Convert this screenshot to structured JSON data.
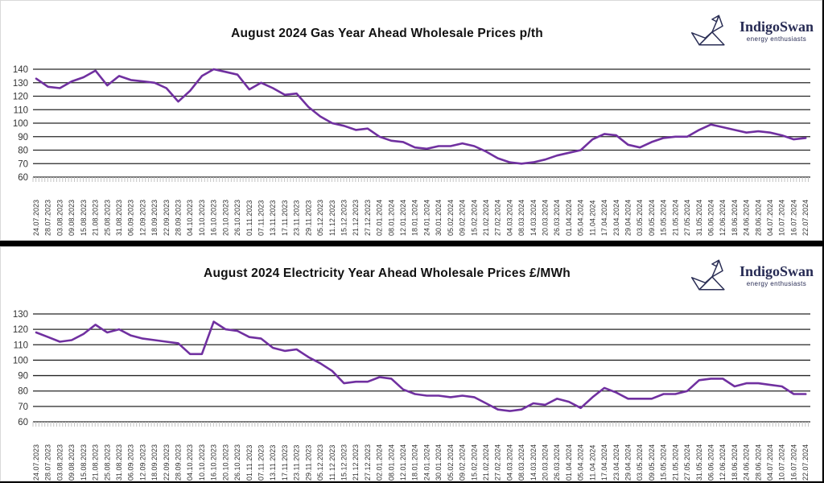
{
  "brand": {
    "name": "IndigoSwan",
    "tagline": "energy enthusiasts",
    "color": "#272b54",
    "icon": "origami-swan-icon"
  },
  "colors": {
    "line_purple": "#7030A0",
    "gridline": "#262626",
    "axis_text": "#333333",
    "panel_background": "#ffffff",
    "page_background": "#000000"
  },
  "chart_data": [
    {
      "name": "gas-year-ahead",
      "type": "line",
      "title": "August 2024 Gas Year Ahead Wholesale Prices p/th",
      "unit": "p/th",
      "series_name": "Gas year ahead wholesale price",
      "line_color": "#7030A0",
      "ylim": [
        60,
        140
      ],
      "ytick_step": 10,
      "yticks": [
        140,
        130,
        120,
        110,
        100,
        90,
        80,
        70,
        60
      ],
      "grid": true,
      "legend": "none",
      "categories": [
        "24.07.2023",
        "28.07.2023",
        "03.08.2023",
        "09.08.2023",
        "15.08.2023",
        "21.08.2023",
        "25.08.2023",
        "31.08.2023",
        "06.09.2023",
        "12.09.2023",
        "18.09.2023",
        "22.09.2023",
        "28.09.2023",
        "04.10.2023",
        "10.10.2023",
        "16.10.2023",
        "20.10.2023",
        "26.10.2023",
        "01.11.2023",
        "07.11.2023",
        "13.11.2023",
        "17.11.2023",
        "23.11.2023",
        "29.11.2023",
        "05.12.2023",
        "11.12.2023",
        "15.12.2023",
        "21.12.2023",
        "27.12.2023",
        "02.01.2024",
        "08.01.2024",
        "12.01.2024",
        "18.01.2024",
        "24.01.2024",
        "30.01.2024",
        "05.02.2024",
        "09.02.2024",
        "15.02.2024",
        "21.02.2024",
        "27.02.2024",
        "04.03.2024",
        "08.03.2024",
        "14.03.2024",
        "20.03.2024",
        "26.03.2024",
        "01.04.2024",
        "05.04.2024",
        "11.04.2024",
        "17.04.2024",
        "23.04.2024",
        "29.04.2024",
        "03.05.2024",
        "09.05.2024",
        "15.05.2024",
        "21.05.2024",
        "27.05.2024",
        "31.05.2024",
        "06.06.2024",
        "12.06.2024",
        "18.06.2024",
        "24.06.2024",
        "28.06.2024",
        "04.07.2024",
        "10.07.2024",
        "16.07.2024",
        "22.07.2024"
      ],
      "values": [
        133,
        127,
        126,
        131,
        134,
        139,
        128,
        135,
        132,
        131,
        130,
        126,
        116,
        124,
        135,
        140,
        138,
        136,
        125,
        130,
        126,
        121,
        122,
        112,
        105,
        100,
        98,
        95,
        96,
        90,
        87,
        86,
        82,
        81,
        83,
        83,
        85,
        83,
        79,
        74,
        71,
        70,
        71,
        73,
        76,
        78,
        80,
        88,
        92,
        91,
        84,
        82,
        86,
        89,
        90,
        90,
        95,
        99,
        97,
        95,
        93,
        94,
        93,
        91,
        88,
        89
      ]
    },
    {
      "name": "electricity-year-ahead",
      "type": "line",
      "title": "August 2024 Electricity Year Ahead Wholesale Prices £/MWh",
      "unit": "£/MWh",
      "series_name": "Electricity year ahead wholesale price",
      "line_color": "#7030A0",
      "ylim": [
        60,
        130
      ],
      "ytick_step": 10,
      "yticks": [
        130,
        120,
        110,
        100,
        90,
        80,
        70,
        60
      ],
      "grid": true,
      "legend": "none",
      "categories": [
        "24.07.2023",
        "28.07.2023",
        "03.08.2023",
        "09.08.2023",
        "15.08.2023",
        "21.08.2023",
        "25.08.2023",
        "31.08.2023",
        "06.09.2023",
        "12.09.2023",
        "18.09.2023",
        "22.09.2023",
        "28.09.2023",
        "04.10.2023",
        "10.10.2023",
        "16.10.2023",
        "20.10.2023",
        "26.10.2023",
        "01.11.2023",
        "07.11.2023",
        "13.11.2023",
        "17.11.2023",
        "23.11.2023",
        "29.11.2023",
        "05.12.2023",
        "11.12.2023",
        "15.12.2023",
        "21.12.2023",
        "27.12.2023",
        "02.01.2024",
        "08.01.2024",
        "12.01.2024",
        "18.01.2024",
        "24.01.2024",
        "30.01.2024",
        "05.02.2024",
        "09.02.2024",
        "15.02.2024",
        "21.02.2024",
        "27.02.2024",
        "04.03.2024",
        "08.03.2024",
        "14.03.2024",
        "20.03.2024",
        "26.03.2024",
        "01.04.2024",
        "05.04.2024",
        "11.04.2024",
        "17.04.2024",
        "23.04.2024",
        "29.04.2024",
        "03.05.2024",
        "09.05.2024",
        "15.05.2024",
        "21.05.2024",
        "27.05.2024",
        "31.05.2024",
        "06.06.2024",
        "12.06.2024",
        "18.06.2024",
        "24.06.2024",
        "28.06.2024",
        "04.07.2024",
        "10.07.2024",
        "16.07.2024",
        "22.07.2024"
      ],
      "values": [
        118,
        115,
        112,
        113,
        117,
        123,
        118,
        120,
        116,
        114,
        113,
        112,
        111,
        104,
        104,
        125,
        120,
        119,
        115,
        114,
        108,
        106,
        107,
        102,
        98,
        93,
        85,
        86,
        86,
        89,
        88,
        81,
        78,
        77,
        77,
        76,
        77,
        76,
        72,
        68,
        67,
        68,
        72,
        71,
        75,
        73,
        69,
        76,
        82,
        79,
        75,
        75,
        75,
        78,
        78,
        80,
        87,
        88,
        88,
        83,
        85,
        85,
        84,
        83,
        78,
        78
      ]
    }
  ]
}
